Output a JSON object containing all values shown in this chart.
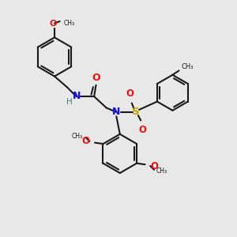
{
  "bg_color": "#e8e8e8",
  "bond_color": "#1a1a1a",
  "N_color": "#1010ee",
  "O_color": "#ee1010",
  "S_color": "#c8a000",
  "H_color": "#408080",
  "figsize": [
    3.0,
    3.0
  ],
  "dpi": 100,
  "xlim": [
    0,
    10
  ],
  "ylim": [
    0,
    10
  ]
}
